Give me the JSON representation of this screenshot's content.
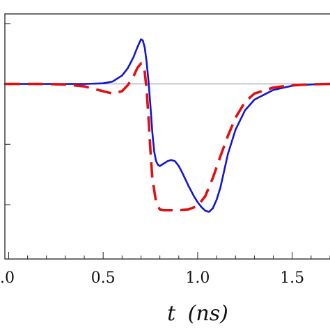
{
  "chart_data": {
    "type": "line",
    "title": "",
    "xlabel": "t (ns)",
    "xlabel_var": "t",
    "xlabel_unit": "(ns)",
    "ylabel": "",
    "xlim": [
      -0.02,
      1.7
    ],
    "ylim": [
      -1.45,
      0.58
    ],
    "x_ticks": [
      0.0,
      0.5,
      1.0,
      1.5
    ],
    "x_tick_labels": [
      ".0",
      "0.5",
      "1.0",
      "1.5"
    ],
    "x_minor_step": 0.1,
    "y_ticks": [
      -1.0,
      -0.5,
      0.0,
      0.5
    ],
    "grid": false,
    "zero_line": true,
    "legend": "none",
    "series": [
      {
        "color": "#1515d0",
        "style": "solid",
        "x": [
          -0.02,
          0.0,
          0.2,
          0.4,
          0.5,
          0.55,
          0.6,
          0.63,
          0.66,
          0.68,
          0.7,
          0.71,
          0.72,
          0.73,
          0.74,
          0.75,
          0.76,
          0.77,
          0.78,
          0.79,
          0.8,
          0.82,
          0.84,
          0.86,
          0.88,
          0.9,
          0.92,
          0.95,
          0.98,
          1.0,
          1.02,
          1.04,
          1.06,
          1.08,
          1.1,
          1.12,
          1.14,
          1.16,
          1.2,
          1.25,
          1.3,
          1.4,
          1.5,
          1.6,
          1.7
        ],
        "y": [
          0.0,
          0.0,
          0.0,
          0.0,
          0.005,
          0.02,
          0.07,
          0.13,
          0.22,
          0.3,
          0.37,
          0.36,
          0.3,
          0.18,
          0.02,
          -0.18,
          -0.4,
          -0.56,
          -0.64,
          -0.67,
          -0.68,
          -0.66,
          -0.64,
          -0.63,
          -0.64,
          -0.68,
          -0.74,
          -0.84,
          -0.93,
          -0.98,
          -1.02,
          -1.05,
          -1.06,
          -1.03,
          -0.96,
          -0.86,
          -0.72,
          -0.58,
          -0.38,
          -0.22,
          -0.13,
          -0.05,
          -0.015,
          -0.004,
          0.0
        ]
      },
      {
        "color": "#e01010",
        "style": "dashed",
        "x": [
          -0.02,
          0.0,
          0.2,
          0.3,
          0.4,
          0.5,
          0.55,
          0.6,
          0.63,
          0.66,
          0.68,
          0.7,
          0.71,
          0.72,
          0.73,
          0.74,
          0.75,
          0.76,
          0.78,
          0.8,
          0.82,
          0.84,
          0.86,
          0.9,
          0.95,
          1.0,
          1.04,
          1.08,
          1.12,
          1.16,
          1.2,
          1.25,
          1.3,
          1.4,
          1.5,
          1.6,
          1.7
        ],
        "y": [
          0.0,
          0.0,
          0.0,
          -0.005,
          -0.02,
          -0.06,
          -0.08,
          -0.06,
          -0.01,
          0.06,
          0.13,
          0.17,
          0.16,
          0.1,
          -0.05,
          -0.28,
          -0.55,
          -0.78,
          -0.98,
          -1.04,
          -1.045,
          -1.045,
          -1.045,
          -1.045,
          -1.04,
          -1.01,
          -0.93,
          -0.78,
          -0.6,
          -0.43,
          -0.28,
          -0.15,
          -0.08,
          -0.03,
          -0.01,
          -0.003,
          0.0
        ]
      }
    ]
  }
}
